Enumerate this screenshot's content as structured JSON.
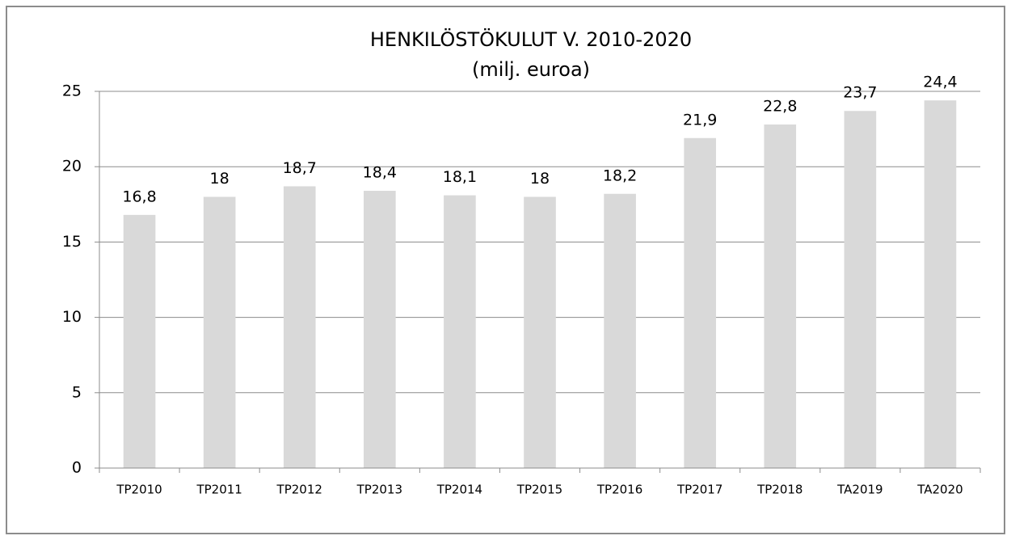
{
  "chart_data": {
    "type": "bar",
    "title": "HENKILÖSTÖKULUT V. 2010-2020",
    "subtitle": "(milj. euroa)",
    "categories": [
      "TP2010",
      "TP2011",
      "TP2012",
      "TP2013",
      "TP2014",
      "TP2015",
      "TP2016",
      "TP2017",
      "TP2018",
      "TA2019",
      "TA2020"
    ],
    "values": [
      16.8,
      18,
      18.7,
      18.4,
      18.1,
      18,
      18.2,
      21.9,
      22.8,
      23.7,
      24.4
    ],
    "value_labels": [
      "16,8",
      "18",
      "18,7",
      "18,4",
      "18,1",
      "18",
      "18,2",
      "21,9",
      "22,8",
      "23,7",
      "24,4"
    ],
    "color": "#d9d9d9",
    "ylim": [
      0,
      25
    ],
    "yticks": [
      0,
      5,
      10,
      15,
      20,
      25
    ],
    "grid": true
  }
}
